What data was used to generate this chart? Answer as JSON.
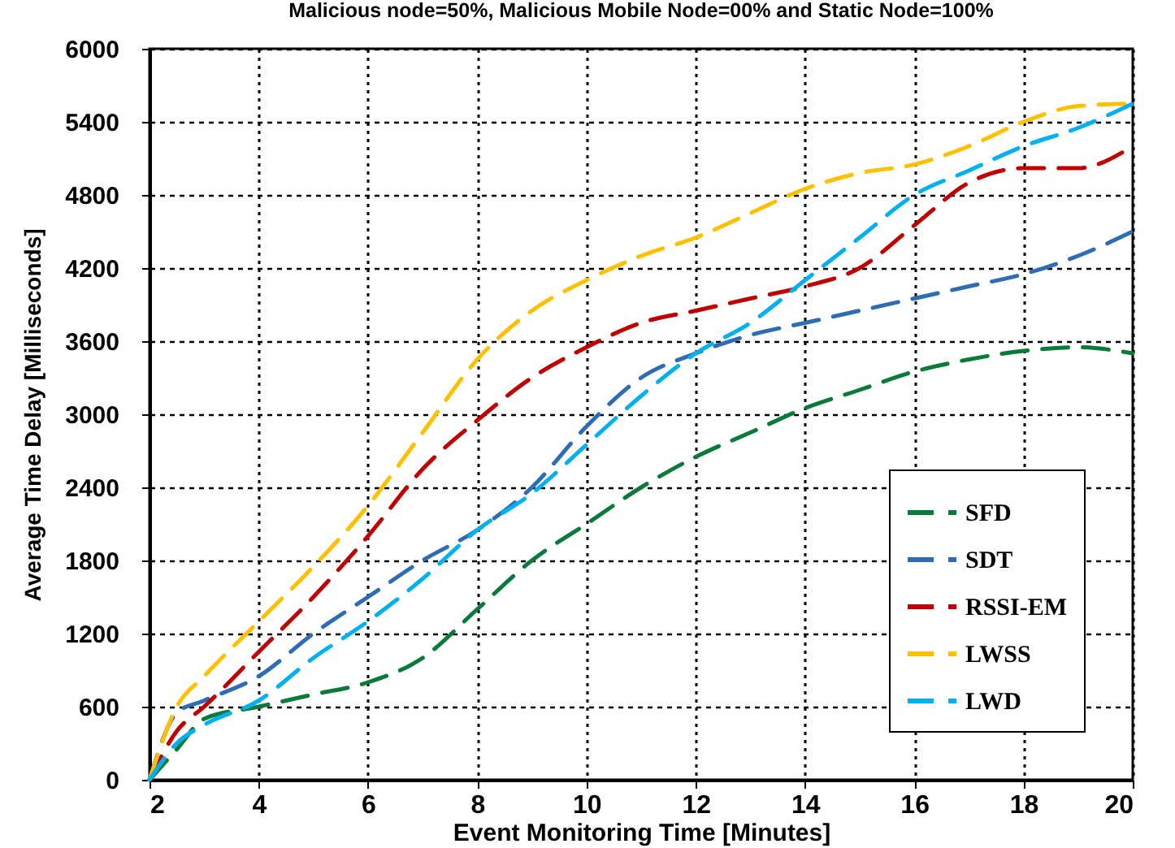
{
  "chart_data": {
    "type": "line",
    "title": "Malicious node=50%, Malicious Mobile Node=00% and Static Node=100%",
    "xlabel": "Event Monitoring Time [Minutes]",
    "ylabel": "Average Time Delay [Milliseconds]",
    "xlim": [
      2,
      20
    ],
    "xticks": [
      2,
      4,
      6,
      8,
      10,
      12,
      14,
      16,
      18,
      20
    ],
    "ylim": [
      0,
      6000
    ],
    "yticks": [
      0,
      600,
      1200,
      1800,
      2400,
      3000,
      3600,
      4200,
      4800,
      5400,
      6000
    ],
    "grid": true,
    "legend": "bottom right",
    "line_style": "dashed",
    "x": [
      2,
      2.5,
      3,
      4,
      5,
      6,
      7,
      8,
      9,
      10,
      11,
      12,
      13,
      14,
      15,
      16,
      17,
      18,
      19,
      20
    ],
    "series": [
      {
        "name": "SFD",
        "color": "#0a7a3a",
        "values": [
          0,
          250,
          500,
          600,
          700,
          800,
          1000,
          1400,
          1800,
          2100,
          2400,
          2650,
          2850,
          3050,
          3200,
          3350,
          3450,
          3520,
          3550,
          3500
        ]
      },
      {
        "name": "SDT",
        "color": "#2e6db4",
        "values": [
          0,
          550,
          650,
          850,
          1200,
          1500,
          1800,
          2050,
          2400,
          2900,
          3300,
          3500,
          3650,
          3750,
          3850,
          3950,
          4050,
          4150,
          4300,
          4500
        ]
      },
      {
        "name": "RSSI-EM",
        "color": "#c00000",
        "values": [
          0,
          400,
          600,
          1050,
          1500,
          2000,
          2550,
          2950,
          3300,
          3550,
          3750,
          3850,
          3950,
          4050,
          4200,
          4550,
          4900,
          5020,
          5020,
          5200
        ]
      },
      {
        "name": "LWSS",
        "color": "#ffc000",
        "values": [
          0,
          600,
          850,
          1300,
          1750,
          2250,
          2850,
          3450,
          3850,
          4100,
          4300,
          4450,
          4650,
          4850,
          4980,
          5050,
          5200,
          5400,
          5530,
          5550
        ]
      },
      {
        "name": "LWD",
        "color": "#00b0f0",
        "values": [
          0,
          300,
          450,
          650,
          1000,
          1300,
          1650,
          2050,
          2350,
          2750,
          3150,
          3500,
          3750,
          4100,
          4450,
          4800,
          5000,
          5200,
          5350,
          5550
        ]
      }
    ]
  }
}
